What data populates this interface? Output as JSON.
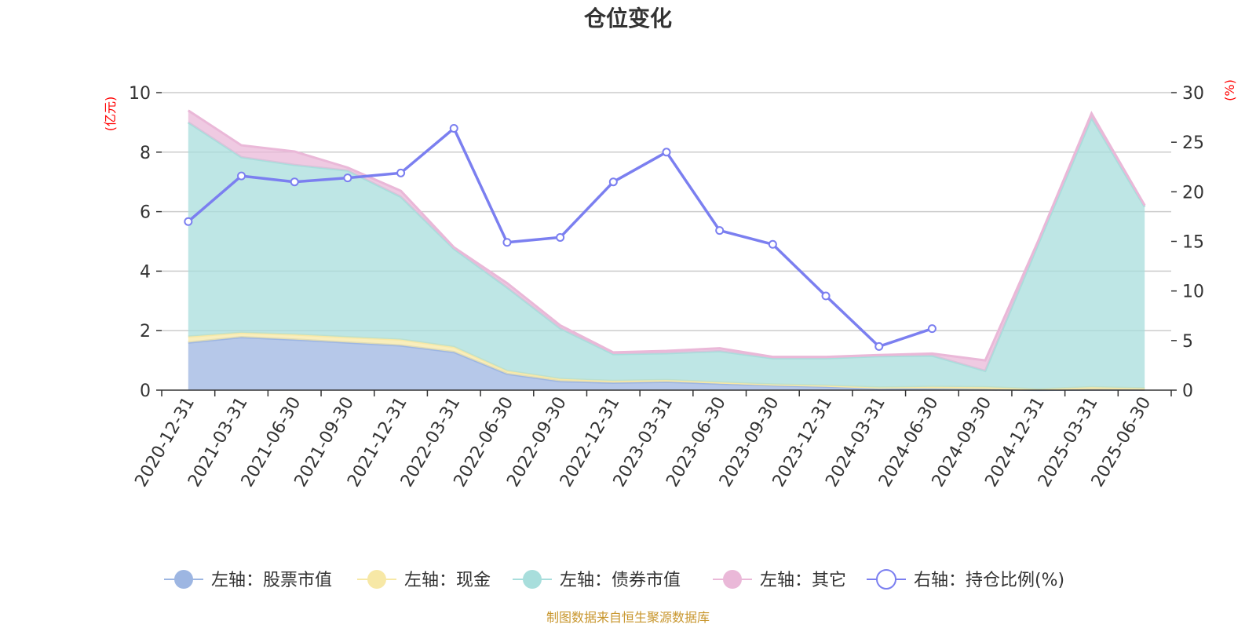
{
  "chart_data": {
    "type": "area",
    "title": "仓位变化",
    "left_unit": "(亿元)",
    "right_unit": "(%)",
    "categories": [
      "2020-12-31",
      "2021-03-31",
      "2021-06-30",
      "2021-09-30",
      "2021-12-31",
      "2022-03-31",
      "2022-06-30",
      "2022-09-30",
      "2022-12-31",
      "2023-03-31",
      "2023-06-30",
      "2023-09-30",
      "2023-12-31",
      "2024-03-31",
      "2024-06-30",
      "2024-09-30",
      "2024-12-31",
      "2025-03-31",
      "2025-06-30"
    ],
    "left_axis": {
      "min": 0,
      "max": 10,
      "ticks": [
        "0",
        "2",
        "4",
        "6",
        "8",
        "10"
      ]
    },
    "right_axis": {
      "min": 0,
      "max": 30,
      "ticks": [
        "0",
        "5",
        "10",
        "15",
        "20",
        "25",
        "30"
      ]
    },
    "grid": true,
    "legend_position": "bottom",
    "series": [
      {
        "name": "左轴：股票市值",
        "axis": "left",
        "stack": true,
        "color": "#9db6e2",
        "values": [
          1.6,
          1.78,
          1.7,
          1.6,
          1.5,
          1.28,
          0.55,
          0.3,
          0.25,
          0.28,
          0.22,
          0.16,
          0.12,
          0.06,
          0.05,
          0.03,
          0.01,
          0.02,
          0.02
        ]
      },
      {
        "name": "左轴：现金",
        "axis": "left",
        "stack": true,
        "color": "#f7e8a6",
        "values": [
          0.2,
          0.15,
          0.17,
          0.18,
          0.2,
          0.17,
          0.1,
          0.08,
          0.06,
          0.06,
          0.04,
          0.03,
          0.03,
          0.03,
          0.06,
          0.07,
          0.02,
          0.08,
          0.04
        ]
      },
      {
        "name": "左轴：债券市值",
        "axis": "left",
        "stack": true,
        "color": "#a8dedc",
        "values": [
          7.2,
          5.9,
          5.7,
          5.6,
          4.8,
          3.3,
          2.8,
          1.7,
          0.9,
          0.9,
          1.05,
          0.88,
          0.92,
          1.05,
          1.05,
          0.55,
          4.9,
          9.05,
          6.1
        ]
      },
      {
        "name": "左轴：其它",
        "axis": "left",
        "stack": true,
        "color": "#eab8d8",
        "values": [
          0.4,
          0.4,
          0.45,
          0.1,
          0.2,
          0.05,
          0.15,
          0.1,
          0.06,
          0.08,
          0.1,
          0.05,
          0.05,
          0.04,
          0.07,
          0.35,
          0.1,
          0.15,
          0.05
        ]
      },
      {
        "name": "右轴：持仓比例(%)",
        "axis": "right",
        "stack": false,
        "color": "#7b7ff0",
        "values": [
          17.0,
          21.6,
          21.0,
          21.4,
          21.9,
          26.4,
          14.9,
          15.4,
          21.0,
          24.0,
          16.1,
          14.7,
          9.5,
          4.4,
          6.2,
          null,
          null,
          null,
          null
        ]
      }
    ]
  },
  "source_note": "制图数据来自恒生聚源数据库"
}
